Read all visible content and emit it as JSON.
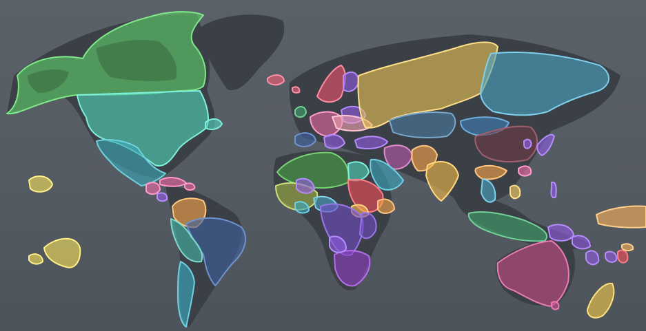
{
  "map": {
    "type": "world-political-blob-map",
    "background_color": "#585e65",
    "land_color": "#3b3f46",
    "labels_visible": false
  },
  "regions": [
    {
      "name": "canada-alaska",
      "color": "#5fce6b"
    },
    {
      "name": "usa",
      "color": "#4fd2b8"
    },
    {
      "name": "mexico",
      "color": "#3ba7b6"
    },
    {
      "name": "hawaii",
      "color": "#f2df5a"
    },
    {
      "name": "pacific-islands",
      "color": "#f2df5a"
    },
    {
      "name": "central-america",
      "color": "#ea6aa8"
    },
    {
      "name": "caribbean",
      "color": "#e8609a"
    },
    {
      "name": "colombia-venezuela",
      "color": "#f7a44a"
    },
    {
      "name": "brazil",
      "color": "#3d5f9c"
    },
    {
      "name": "andes",
      "color": "#45b3a5"
    },
    {
      "name": "chile-argentina",
      "color": "#3aa9c0"
    },
    {
      "name": "greenland",
      "color": "#3b3f46"
    },
    {
      "name": "iceland",
      "color": "#ef5f78"
    },
    {
      "name": "scandinavia",
      "color": "#e8526e"
    },
    {
      "name": "europe-west",
      "color": "#e0679e"
    },
    {
      "name": "russia",
      "color": "#e8c256"
    },
    {
      "name": "central-asia",
      "color": "#4a79a0"
    },
    {
      "name": "siberia-east",
      "color": "#4aa3c2"
    },
    {
      "name": "mongolia",
      "color": "#3f7fb4"
    },
    {
      "name": "china",
      "color": "#6e3a48"
    },
    {
      "name": "japan",
      "color": "#8e5ce0"
    },
    {
      "name": "middle-east",
      "color": "#b85aa8"
    },
    {
      "name": "iran",
      "color": "#f7a44a"
    },
    {
      "name": "arabia",
      "color": "#3aa4bc"
    },
    {
      "name": "india",
      "color": "#f0b84a"
    },
    {
      "name": "southeast-asia",
      "color": "#f7a44a"
    },
    {
      "name": "indonesia",
      "color": "#3fa06a"
    },
    {
      "name": "philippines",
      "color": "#f0c65a"
    },
    {
      "name": "north-africa",
      "color": "#47a046"
    },
    {
      "name": "west-africa",
      "color": "#a0b046"
    },
    {
      "name": "sudan-east-africa",
      "color": "#ef4f58"
    },
    {
      "name": "central-africa",
      "color": "#6f4ac0"
    },
    {
      "name": "southern-africa",
      "color": "#8a3fc0"
    },
    {
      "name": "madagascar",
      "color": "#3b3f46"
    },
    {
      "name": "australia",
      "color": "#c24a86"
    },
    {
      "name": "new-zealand",
      "color": "#f0c84a"
    },
    {
      "name": "papua",
      "color": "#8e5ce0"
    },
    {
      "name": "pacific-east",
      "color": "#f7b05a"
    }
  ]
}
